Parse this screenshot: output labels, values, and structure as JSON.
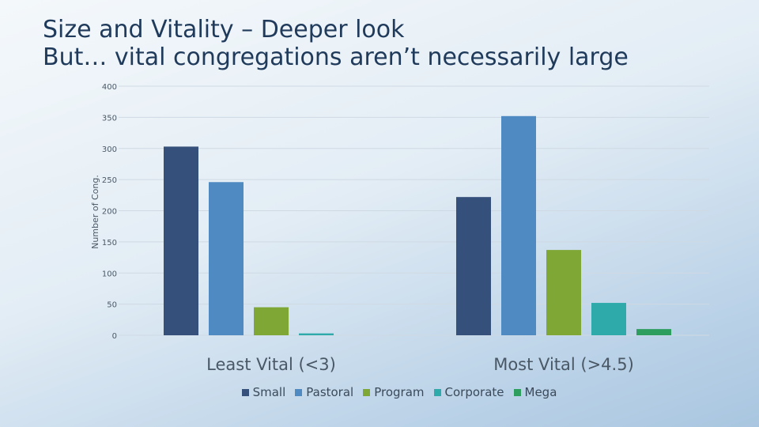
{
  "title_line1": "Size and Vitality – Deeper look",
  "title_line2": "But… vital congregations aren’t necessarily large",
  "chart_data": {
    "type": "bar",
    "categories": [
      "Least Vital (<3)",
      "Most Vital (>4.5)"
    ],
    "series": [
      {
        "name": "Small",
        "color": "#35507a",
        "values": [
          303,
          222
        ]
      },
      {
        "name": "Pastoral",
        "color": "#4f8bc2",
        "values": [
          246,
          352
        ]
      },
      {
        "name": "Program",
        "color": "#7ea735",
        "values": [
          45,
          137
        ]
      },
      {
        "name": "Corporate",
        "color": "#2eaaaa",
        "values": [
          3,
          52
        ]
      },
      {
        "name": "Mega",
        "color": "#2e9e5e",
        "values": [
          0,
          10
        ]
      }
    ],
    "ylabel": "Number of Cong.",
    "xlabel": "",
    "ylim": [
      0,
      400
    ],
    "yticks": [
      0,
      50,
      100,
      150,
      200,
      250,
      300,
      350,
      400
    ],
    "legend_position": "bottom"
  }
}
